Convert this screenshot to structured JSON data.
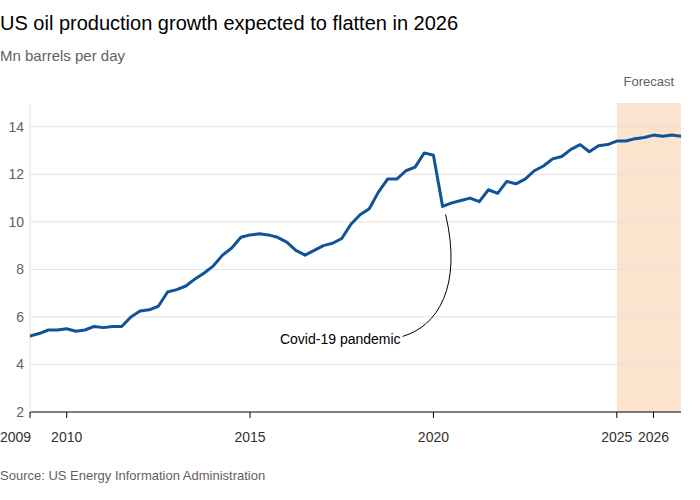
{
  "chart_data": {
    "type": "line",
    "title": "US oil production growth expected to flatten in 2026",
    "subtitle": "Mn barrels per day",
    "source": "Source: US Energy Information Administration",
    "color": "#0f5499",
    "grid": true,
    "xlim": [
      2009,
      2026.75
    ],
    "xticks": [
      2009,
      2010,
      2015,
      2020,
      2025,
      2026
    ],
    "ylim": [
      2,
      15
    ],
    "yticks": [
      2,
      4,
      6,
      8,
      10,
      12,
      14
    ],
    "shaded_range": {
      "label": "Forecast",
      "x": [
        2025,
        2026.75
      ]
    },
    "annotation": {
      "text": "Covid-19 pandemic",
      "x": 2020.25,
      "y": 10.65
    },
    "x": [
      2009,
      2009.25,
      2009.5,
      2009.75,
      2010,
      2010.25,
      2010.5,
      2010.75,
      2011,
      2011.25,
      2011.5,
      2011.75,
      2012,
      2012.25,
      2012.5,
      2012.75,
      2013,
      2013.25,
      2013.5,
      2013.75,
      2014,
      2014.25,
      2014.5,
      2014.75,
      2015,
      2015.25,
      2015.5,
      2015.75,
      2016,
      2016.25,
      2016.5,
      2016.75,
      2017,
      2017.25,
      2017.5,
      2017.75,
      2018,
      2018.25,
      2018.5,
      2018.75,
      2019,
      2019.25,
      2019.5,
      2019.75,
      2020,
      2020.25,
      2020.5,
      2020.75,
      2021,
      2021.25,
      2021.5,
      2021.75,
      2022,
      2022.25,
      2022.5,
      2022.75,
      2023,
      2023.25,
      2023.5,
      2023.75,
      2024,
      2024.25,
      2024.5,
      2024.75,
      2025,
      2025.25,
      2025.5,
      2025.75,
      2026,
      2026.25,
      2026.5,
      2026.75
    ],
    "values": [
      5.2,
      5.3,
      5.45,
      5.45,
      5.5,
      5.4,
      5.45,
      5.6,
      5.55,
      5.6,
      5.6,
      6.0,
      6.25,
      6.3,
      6.45,
      7.05,
      7.15,
      7.3,
      7.6,
      7.85,
      8.15,
      8.6,
      8.9,
      9.35,
      9.45,
      9.5,
      9.45,
      9.35,
      9.15,
      8.8,
      8.6,
      8.8,
      9.0,
      9.1,
      9.3,
      9.9,
      10.3,
      10.55,
      11.25,
      11.8,
      11.8,
      12.15,
      12.3,
      12.9,
      12.8,
      10.65,
      10.8,
      10.9,
      11.0,
      10.85,
      11.35,
      11.2,
      11.7,
      11.6,
      11.8,
      12.15,
      12.35,
      12.65,
      12.75,
      13.05,
      13.25,
      12.95,
      13.2,
      13.25,
      13.4,
      13.4,
      13.5,
      13.55,
      13.65,
      13.6,
      13.65,
      13.6
    ]
  }
}
